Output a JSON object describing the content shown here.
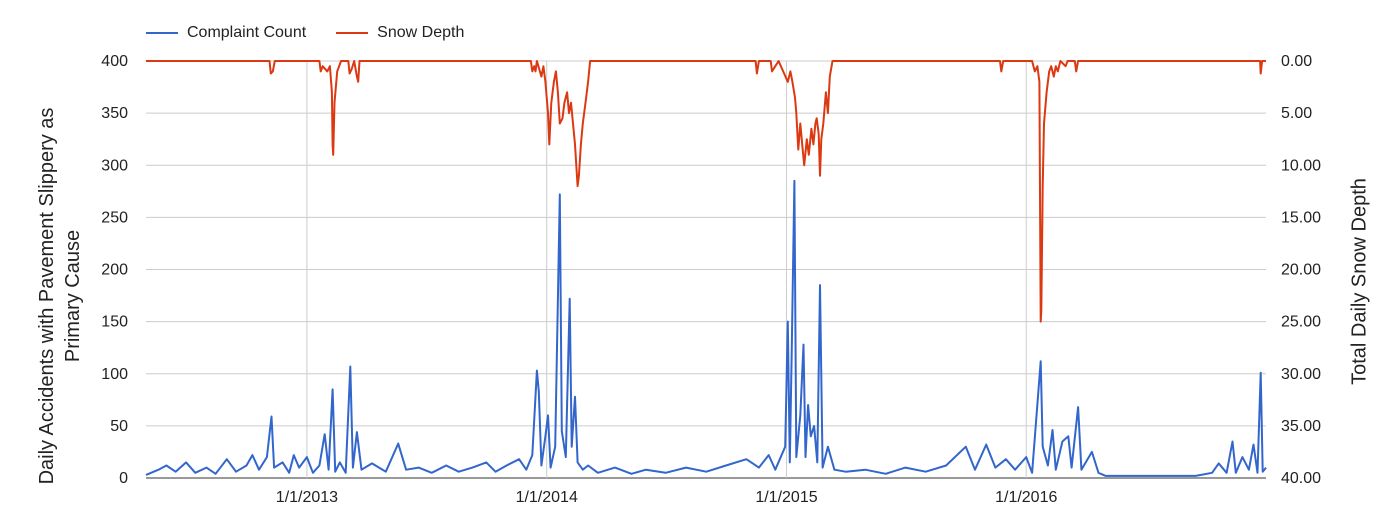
{
  "chart_data": {
    "type": "line",
    "title": "",
    "xlabel": "",
    "ylabel_left": "Daily Accidents with Pavement Slippery as Primary Cause",
    "ylabel_right": "Total Daily Snow Depth",
    "x_tick_labels": [
      "1/1/2013",
      "1/1/2014",
      "1/1/2015",
      "1/1/2016"
    ],
    "x_range": [
      "2012-05-01",
      "2016-12-31"
    ],
    "ylim_left": [
      0,
      400
    ],
    "ylim_right": [
      0,
      40
    ],
    "right_axis_inverted": true,
    "left_ticks": [
      "0",
      "50",
      "100",
      "150",
      "200",
      "250",
      "300",
      "350",
      "400"
    ],
    "right_ticks": [
      "0.00",
      "5.00",
      "10.00",
      "15.00",
      "20.00",
      "25.00",
      "30.00",
      "35.00",
      "40.00"
    ],
    "grid": true,
    "legend_position": "top-left",
    "series": [
      {
        "name": "Complaint Count",
        "color": "#3366cc",
        "axis": "left",
        "points": [
          [
            "2012-05-01",
            3
          ],
          [
            "2012-05-20",
            8
          ],
          [
            "2012-06-01",
            12
          ],
          [
            "2012-06-15",
            6
          ],
          [
            "2012-07-01",
            15
          ],
          [
            "2012-07-15",
            5
          ],
          [
            "2012-08-01",
            10
          ],
          [
            "2012-08-15",
            4
          ],
          [
            "2012-09-01",
            18
          ],
          [
            "2012-09-15",
            6
          ],
          [
            "2012-10-01",
            12
          ],
          [
            "2012-10-10",
            22
          ],
          [
            "2012-10-20",
            8
          ],
          [
            "2012-11-01",
            20
          ],
          [
            "2012-11-08",
            59
          ],
          [
            "2012-11-12",
            10
          ],
          [
            "2012-11-25",
            15
          ],
          [
            "2012-12-05",
            5
          ],
          [
            "2012-12-12",
            22
          ],
          [
            "2012-12-20",
            10
          ],
          [
            "2013-01-01",
            20
          ],
          [
            "2013-01-10",
            5
          ],
          [
            "2013-01-20",
            12
          ],
          [
            "2013-01-28",
            42
          ],
          [
            "2013-02-03",
            8
          ],
          [
            "2013-02-09",
            85
          ],
          [
            "2013-02-13",
            6
          ],
          [
            "2013-02-20",
            15
          ],
          [
            "2013-03-01",
            5
          ],
          [
            "2013-03-08",
            107
          ],
          [
            "2013-03-12",
            10
          ],
          [
            "2013-03-18",
            44
          ],
          [
            "2013-03-25",
            8
          ],
          [
            "2013-04-10",
            14
          ],
          [
            "2013-05-01",
            6
          ],
          [
            "2013-05-20",
            33
          ],
          [
            "2013-06-01",
            8
          ],
          [
            "2013-06-20",
            10
          ],
          [
            "2013-07-10",
            5
          ],
          [
            "2013-08-01",
            12
          ],
          [
            "2013-08-20",
            6
          ],
          [
            "2013-09-10",
            10
          ],
          [
            "2013-10-01",
            15
          ],
          [
            "2013-10-15",
            6
          ],
          [
            "2013-11-01",
            12
          ],
          [
            "2013-11-20",
            18
          ],
          [
            "2013-12-01",
            8
          ],
          [
            "2013-12-10",
            22
          ],
          [
            "2013-12-17",
            103
          ],
          [
            "2013-12-20",
            83
          ],
          [
            "2013-12-24",
            12
          ],
          [
            "2013-12-30",
            40
          ],
          [
            "2014-01-03",
            60
          ],
          [
            "2014-01-07",
            10
          ],
          [
            "2014-01-14",
            30
          ],
          [
            "2014-01-21",
            272
          ],
          [
            "2014-01-24",
            45
          ],
          [
            "2014-01-30",
            20
          ],
          [
            "2014-02-05",
            172
          ],
          [
            "2014-02-08",
            30
          ],
          [
            "2014-02-13",
            78
          ],
          [
            "2014-02-17",
            15
          ],
          [
            "2014-02-25",
            8
          ],
          [
            "2014-03-05",
            12
          ],
          [
            "2014-03-20",
            5
          ],
          [
            "2014-04-15",
            10
          ],
          [
            "2014-05-10",
            4
          ],
          [
            "2014-06-01",
            8
          ],
          [
            "2014-07-01",
            5
          ],
          [
            "2014-08-01",
            10
          ],
          [
            "2014-09-01",
            6
          ],
          [
            "2014-10-01",
            12
          ],
          [
            "2014-11-01",
            18
          ],
          [
            "2014-11-20",
            10
          ],
          [
            "2014-12-05",
            22
          ],
          [
            "2014-12-15",
            8
          ],
          [
            "2014-12-30",
            30
          ],
          [
            "2015-01-03",
            150
          ],
          [
            "2015-01-06",
            15
          ],
          [
            "2015-01-09",
            120
          ],
          [
            "2015-01-13",
            285
          ],
          [
            "2015-01-16",
            20
          ],
          [
            "2015-01-22",
            60
          ],
          [
            "2015-01-27",
            128
          ],
          [
            "2015-01-30",
            20
          ],
          [
            "2015-02-03",
            70
          ],
          [
            "2015-02-07",
            40
          ],
          [
            "2015-02-12",
            50
          ],
          [
            "2015-02-17",
            15
          ],
          [
            "2015-02-21",
            185
          ],
          [
            "2015-02-25",
            10
          ],
          [
            "2015-03-05",
            30
          ],
          [
            "2015-03-15",
            8
          ],
          [
            "2015-04-01",
            6
          ],
          [
            "2015-05-01",
            8
          ],
          [
            "2015-06-01",
            4
          ],
          [
            "2015-07-01",
            10
          ],
          [
            "2015-08-01",
            6
          ],
          [
            "2015-09-01",
            12
          ],
          [
            "2015-10-01",
            30
          ],
          [
            "2015-10-15",
            8
          ],
          [
            "2015-11-01",
            32
          ],
          [
            "2015-11-15",
            10
          ],
          [
            "2015-12-01",
            18
          ],
          [
            "2015-12-15",
            8
          ],
          [
            "2016-01-01",
            20
          ],
          [
            "2016-01-10",
            5
          ],
          [
            "2016-01-23",
            112
          ],
          [
            "2016-01-26",
            30
          ],
          [
            "2016-02-03",
            12
          ],
          [
            "2016-02-10",
            46
          ],
          [
            "2016-02-15",
            8
          ],
          [
            "2016-02-25",
            35
          ],
          [
            "2016-03-05",
            40
          ],
          [
            "2016-03-10",
            10
          ],
          [
            "2016-03-20",
            68
          ],
          [
            "2016-03-25",
            8
          ],
          [
            "2016-04-10",
            25
          ],
          [
            "2016-04-20",
            5
          ],
          [
            "2016-05-01",
            2
          ],
          [
            "2016-06-15",
            2
          ],
          [
            "2016-08-01",
            2
          ],
          [
            "2016-09-15",
            2
          ],
          [
            "2016-10-10",
            5
          ],
          [
            "2016-10-20",
            14
          ],
          [
            "2016-11-01",
            5
          ],
          [
            "2016-11-10",
            35
          ],
          [
            "2016-11-15",
            5
          ],
          [
            "2016-11-25",
            20
          ],
          [
            "2016-12-05",
            8
          ],
          [
            "2016-12-12",
            32
          ],
          [
            "2016-12-18",
            5
          ],
          [
            "2016-12-23",
            101
          ],
          [
            "2016-12-26",
            6
          ],
          [
            "2016-12-31",
            10
          ]
        ]
      },
      {
        "name": "Snow Depth",
        "color": "#dc3912",
        "axis": "right",
        "points": [
          [
            "2012-05-01",
            0
          ],
          [
            "2012-11-05",
            0
          ],
          [
            "2012-11-07",
            1.2
          ],
          [
            "2012-11-10",
            1.0
          ],
          [
            "2012-11-13",
            0
          ],
          [
            "2013-01-20",
            0
          ],
          [
            "2013-01-22",
            1.0
          ],
          [
            "2013-01-25",
            0.5
          ],
          [
            "2013-02-01",
            1.0
          ],
          [
            "2013-02-05",
            0.5
          ],
          [
            "2013-02-08",
            3.0
          ],
          [
            "2013-02-09",
            8.0
          ],
          [
            "2013-02-10",
            9.0
          ],
          [
            "2013-02-12",
            4.0
          ],
          [
            "2013-02-16",
            1.0
          ],
          [
            "2013-02-22",
            0
          ],
          [
            "2013-03-05",
            0
          ],
          [
            "2013-03-07",
            1.2
          ],
          [
            "2013-03-10",
            0.8
          ],
          [
            "2013-03-14",
            0
          ],
          [
            "2013-03-18",
            1.5
          ],
          [
            "2013-03-20",
            2.0
          ],
          [
            "2013-03-22",
            0
          ],
          [
            "2013-12-08",
            0
          ],
          [
            "2013-12-10",
            1.0
          ],
          [
            "2013-12-13",
            0.5
          ],
          [
            "2013-12-15",
            1.0
          ],
          [
            "2013-12-17",
            0
          ],
          [
            "2013-12-24",
            1.5
          ],
          [
            "2013-12-27",
            0.5
          ],
          [
            "2013-12-30",
            2.0
          ],
          [
            "2014-01-03",
            5.0
          ],
          [
            "2014-01-05",
            8.0
          ],
          [
            "2014-01-08",
            4.0
          ],
          [
            "2014-01-12",
            2.0
          ],
          [
            "2014-01-15",
            1.0
          ],
          [
            "2014-01-18",
            3.0
          ],
          [
            "2014-01-21",
            6.0
          ],
          [
            "2014-01-25",
            5.5
          ],
          [
            "2014-01-28",
            4.0
          ],
          [
            "2014-02-01",
            3.0
          ],
          [
            "2014-02-04",
            5.0
          ],
          [
            "2014-02-07",
            4.0
          ],
          [
            "2014-02-10",
            6.0
          ],
          [
            "2014-02-13",
            8.0
          ],
          [
            "2014-02-15",
            10.0
          ],
          [
            "2014-02-17",
            12.0
          ],
          [
            "2014-02-19",
            11.0
          ],
          [
            "2014-02-22",
            8.0
          ],
          [
            "2014-02-25",
            6.0
          ],
          [
            "2014-03-01",
            4.0
          ],
          [
            "2014-03-05",
            2.0
          ],
          [
            "2014-03-08",
            0
          ],
          [
            "2014-11-15",
            0
          ],
          [
            "2014-11-17",
            1.2
          ],
          [
            "2014-11-20",
            0
          ],
          [
            "2014-12-08",
            0
          ],
          [
            "2014-12-10",
            1.0
          ],
          [
            "2014-12-15",
            0.5
          ],
          [
            "2014-12-20",
            0
          ],
          [
            "2015-01-03",
            2.0
          ],
          [
            "2015-01-07",
            1.0
          ],
          [
            "2015-01-10",
            2.0
          ],
          [
            "2015-01-14",
            3.5
          ],
          [
            "2015-01-16",
            5.0
          ],
          [
            "2015-01-19",
            8.5
          ],
          [
            "2015-01-22",
            6.0
          ],
          [
            "2015-01-25",
            8.0
          ],
          [
            "2015-01-28",
            10.0
          ],
          [
            "2015-02-01",
            7.5
          ],
          [
            "2015-02-04",
            9.0
          ],
          [
            "2015-02-08",
            6.5
          ],
          [
            "2015-02-11",
            8.0
          ],
          [
            "2015-02-14",
            6.0
          ],
          [
            "2015-02-16",
            5.5
          ],
          [
            "2015-02-19",
            7.0
          ],
          [
            "2015-02-21",
            11.0
          ],
          [
            "2015-02-23",
            7.5
          ],
          [
            "2015-02-26",
            6.0
          ],
          [
            "2015-03-02",
            3.0
          ],
          [
            "2015-03-05",
            5.0
          ],
          [
            "2015-03-08",
            1.5
          ],
          [
            "2015-03-12",
            0
          ],
          [
            "2015-11-22",
            0
          ],
          [
            "2015-11-24",
            1.0
          ],
          [
            "2015-11-27",
            0
          ],
          [
            "2016-01-10",
            0
          ],
          [
            "2016-01-14",
            1.0
          ],
          [
            "2016-01-18",
            0.5
          ],
          [
            "2016-01-21",
            2.0
          ],
          [
            "2016-01-23",
            25.0
          ],
          [
            "2016-01-24",
            24.0
          ],
          [
            "2016-01-26",
            12.0
          ],
          [
            "2016-01-28",
            6.0
          ],
          [
            "2016-02-01",
            3.0
          ],
          [
            "2016-02-05",
            1.0
          ],
          [
            "2016-02-08",
            0.5
          ],
          [
            "2016-02-12",
            1.5
          ],
          [
            "2016-02-15",
            0.5
          ],
          [
            "2016-02-18",
            1.0
          ],
          [
            "2016-02-22",
            0
          ],
          [
            "2016-03-01",
            0.5
          ],
          [
            "2016-03-04",
            0
          ],
          [
            "2016-03-15",
            0
          ],
          [
            "2016-03-17",
            1.0
          ],
          [
            "2016-03-20",
            0
          ],
          [
            "2016-12-22",
            0
          ],
          [
            "2016-12-23",
            1.2
          ],
          [
            "2016-12-25",
            0
          ],
          [
            "2016-12-31",
            0
          ]
        ]
      }
    ]
  }
}
